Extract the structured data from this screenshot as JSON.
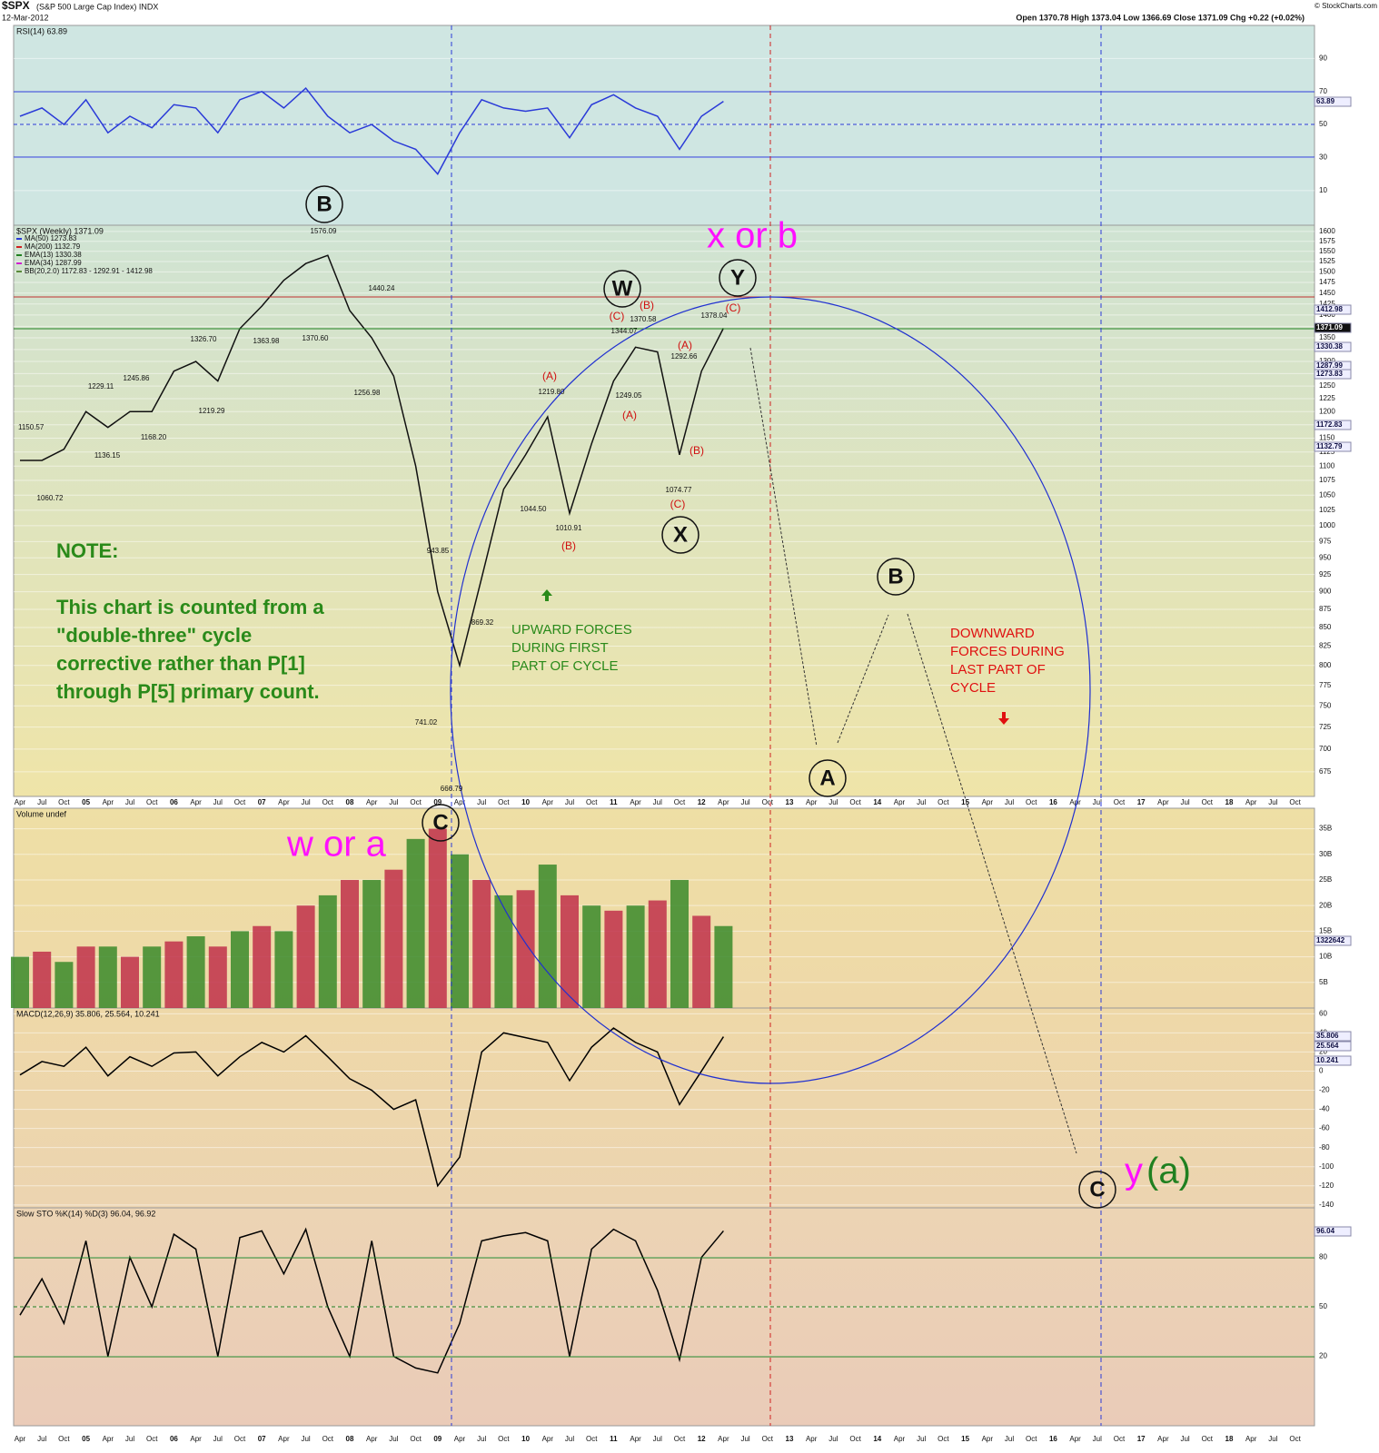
{
  "header": {
    "symbol": "$SPX",
    "name": "(S&P 500 Large Cap Index) INDX",
    "date": "12-Mar-2012",
    "quote": "Open 1370.78 High 1373.04 Low 1366.69 Close 1371.09 Chg +0.22 (+0.02%)",
    "credit": "© StockCharts.com"
  },
  "chart_data": [
    {
      "type": "line",
      "title": "RSI(14) 63.89",
      "color": "#2a3ad8",
      "ylim": [
        -11,
        110
      ],
      "yticks": [
        10,
        30,
        50,
        70,
        90
      ],
      "values": [
        55,
        60,
        50,
        65,
        45,
        55,
        48,
        62,
        60,
        45,
        65,
        70,
        60,
        72,
        55,
        45,
        50,
        40,
        35,
        20,
        45,
        65,
        60,
        58,
        60,
        42,
        62,
        68,
        60,
        55,
        35,
        55,
        64,
        null,
        null,
        null,
        null,
        null,
        null,
        null,
        null,
        null,
        null,
        null,
        null,
        null,
        null,
        null,
        null,
        null,
        null,
        null,
        null,
        null,
        null,
        null,
        null,
        null,
        null
      ]
    },
    {
      "type": "line",
      "title": "$SPX (Weekly) 1371.09",
      "color": "#111111",
      "log": true,
      "ylim": [
        649,
        1616
      ],
      "legend": [
        {
          "name": "MA(50) 1273.83",
          "color": "#2a3ad8"
        },
        {
          "name": "MA(200) 1132.79",
          "color": "#d02020"
        },
        {
          "name": "EMA(13) 1330.38",
          "color": "#208020"
        },
        {
          "name": "EMA(34) 1287.99",
          "color": "#d020d0"
        },
        {
          "name": "BB(20,2.0) 1172.83 - 1292.91 - 1412.98",
          "color": "#5a8a3a"
        }
      ],
      "yticks": [
        675,
        700,
        725,
        750,
        775,
        800,
        825,
        850,
        875,
        900,
        925,
        950,
        975,
        1000,
        1025,
        1050,
        1075,
        1100,
        1125,
        1150,
        1175,
        1200,
        1225,
        1250,
        1275,
        1300,
        1325,
        1350,
        1375,
        1400,
        1425,
        1450,
        1475,
        1500,
        1525,
        1550,
        1575,
        1600
      ],
      "categories": [
        "Apr",
        "Jul",
        "Oct",
        "05",
        "Apr",
        "Jul",
        "Oct",
        "06",
        "Apr",
        "Jul",
        "Oct",
        "07",
        "Apr",
        "Jul",
        "Oct",
        "08",
        "Apr",
        "Jul",
        "Oct",
        "09",
        "Apr",
        "Jul",
        "Oct",
        "10",
        "Apr",
        "Jul",
        "Oct",
        "11",
        "Apr",
        "Jul",
        "Oct",
        "12",
        "Apr",
        "Jul",
        "Oct",
        "13",
        "Apr",
        "Jul",
        "Oct",
        "14",
        "Apr",
        "Jul",
        "Oct",
        "15",
        "Apr",
        "Jul",
        "Oct",
        "16",
        "Apr",
        "Jul",
        "Oct",
        "17",
        "Apr",
        "Jul",
        "Oct",
        "18",
        "Apr",
        "Jul",
        "Oct"
      ],
      "values": [
        1110,
        1110,
        1130,
        1200,
        1170,
        1200,
        1200,
        1280,
        1300,
        1260,
        1370,
        1420,
        1480,
        1520,
        1540,
        1410,
        1350,
        1270,
        1100,
        900,
        800,
        920,
        1060,
        1120,
        1190,
        1020,
        1140,
        1260,
        1330,
        1320,
        1120,
        1280,
        1371,
        null,
        null,
        null,
        null,
        null,
        null,
        null,
        null,
        null,
        null,
        null,
        null,
        null,
        null,
        null,
        null,
        null,
        null,
        null,
        null,
        null,
        null,
        null,
        null,
        null,
        null
      ]
    },
    {
      "type": "bar",
      "title": "Volume undef",
      "color": "#3a8a2a",
      "ylim": [
        0,
        39
      ],
      "yticks": [
        {
          "value": 5,
          "label": "5B"
        },
        {
          "value": 10,
          "label": "10B"
        },
        {
          "value": 15,
          "label": "15B"
        },
        {
          "value": 20,
          "label": "20B"
        },
        {
          "value": 25,
          "label": "25B"
        },
        {
          "value": 30,
          "label": "30B"
        },
        {
          "value": 35,
          "label": "35B"
        }
      ],
      "values": [
        10,
        11,
        9,
        12,
        12,
        10,
        12,
        13,
        14,
        12,
        15,
        16,
        15,
        20,
        22,
        25,
        25,
        27,
        33,
        35,
        30,
        25,
        22,
        23,
        28,
        22,
        20,
        19,
        20,
        21,
        25,
        18,
        16,
        null,
        null,
        null,
        null,
        null,
        null,
        null,
        null,
        null,
        null,
        null,
        null,
        null,
        null,
        null,
        null,
        null,
        null,
        null,
        null,
        null,
        null,
        null,
        null,
        null,
        null
      ]
    },
    {
      "type": "line",
      "title": "MACD(12,26,9) 35.806, 25.564, 10.241",
      "color": "#000000",
      "ylim": [
        -143,
        66
      ],
      "yticks": [
        60,
        40,
        20,
        0,
        -20,
        -40,
        -60,
        -80,
        -100,
        -120,
        -140
      ],
      "values": [
        -4,
        10,
        5,
        25,
        -5,
        15,
        5,
        19,
        20,
        -5,
        15,
        30,
        20,
        37,
        15,
        -8,
        -20,
        -40,
        -30,
        -120,
        -90,
        20,
        40,
        35,
        30,
        -10,
        25,
        45,
        30,
        20,
        -35,
        0,
        36,
        null,
        null,
        null,
        null,
        null,
        null,
        null,
        null,
        null,
        null,
        null,
        null,
        null,
        null,
        null,
        null,
        null,
        null,
        null,
        null,
        null,
        null,
        null,
        null,
        null,
        null
      ]
    },
    {
      "type": "line",
      "title": "Slow STO %K(14) %D(3) 96.04, 96.92",
      "color": "#000000",
      "ylim": [
        -22,
        110
      ],
      "yticks": [
        20,
        50,
        80
      ],
      "values": [
        45,
        67,
        40,
        90,
        20,
        80,
        50,
        94,
        85,
        20,
        92,
        96,
        70,
        97,
        50,
        20,
        90,
        20,
        13,
        10,
        40,
        90,
        93,
        95,
        90,
        20,
        85,
        97,
        90,
        60,
        18,
        80,
        96,
        null,
        null,
        null,
        null,
        null,
        null,
        null,
        null,
        null,
        null,
        null,
        null,
        null,
        null,
        null,
        null,
        null,
        null,
        null,
        null,
        null,
        null,
        null,
        null,
        null,
        null
      ]
    }
  ],
  "tags": [
    "63.89",
    "1412.98",
    "1371.09",
    "1330.38",
    "1287.99",
    "1273.83",
    "1172.83",
    "1132.79",
    "1322642",
    "35.806",
    "25.564",
    "10.241",
    "96.04"
  ],
  "wave_labels": [
    "B",
    "W",
    "Y",
    "X",
    "C",
    "B",
    "A",
    "C"
  ],
  "sub_labels": [
    "(A)",
    "(B)",
    "(C)",
    "(B)",
    "(A)",
    "(C)",
    "(A)",
    "(B)",
    "(C)"
  ],
  "price_labels": [
    "1576.09",
    "1440.24",
    "1326.70",
    "1363.98",
    "1370.60",
    "1256.98",
    "1229.11",
    "1245.86",
    "1219.29",
    "1150.57",
    "1168.20",
    "1136.15",
    "1060.72",
    "943.85",
    "869.32",
    "741.02",
    "666.79",
    "1044.50",
    "1010.91",
    "1219.80",
    "1249.05",
    "1344.07",
    "1370.58",
    "1378.04",
    "1292.66",
    "1074.77"
  ],
  "big_labels": [
    "x or b",
    "w or a",
    "y",
    "(a)"
  ],
  "note": [
    "NOTE:",
    "This chart is counted from a",
    "\"double-three\" cycle",
    "corrective rather than P[1]",
    "through P[5] primary count."
  ],
  "upward": [
    "UPWARD FORCES",
    "DURING FIRST",
    "PART OF CYCLE"
  ],
  "downward": [
    "DOWNWARD",
    "FORCES DURING",
    "LAST PART OF",
    "CYCLE"
  ]
}
